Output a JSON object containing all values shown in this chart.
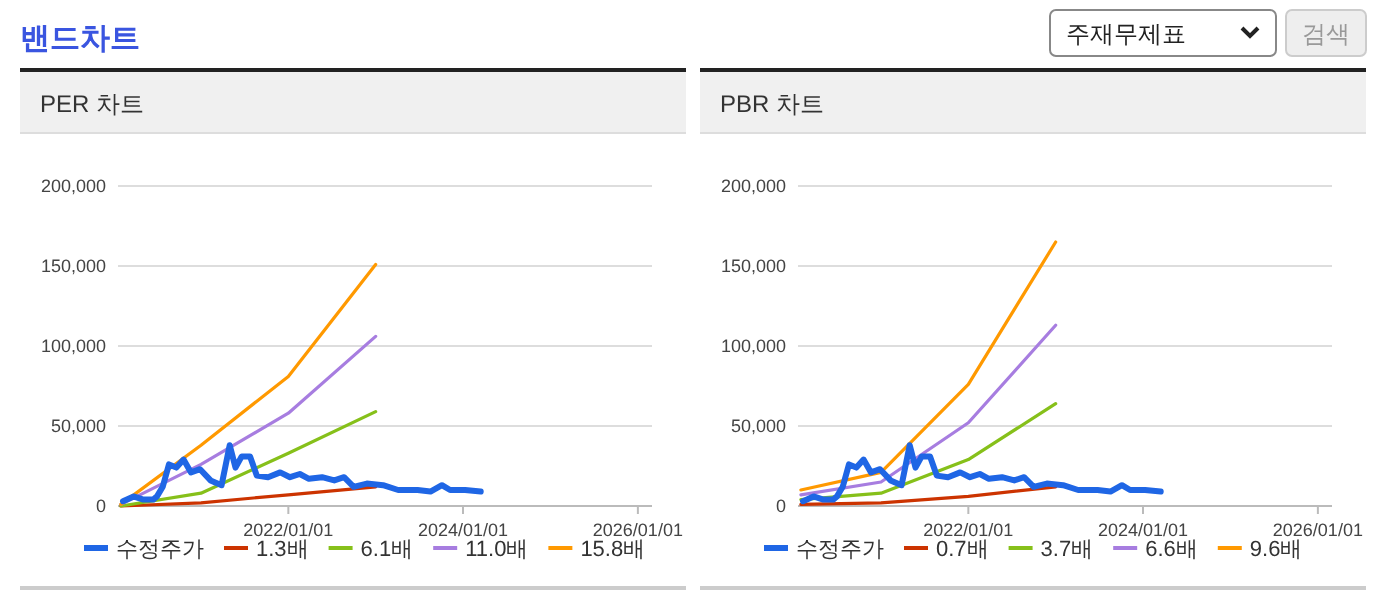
{
  "chart_data": [
    {
      "type": "other",
      "title": "밴드차트",
      "annotations": [
        "주재무제표",
        "검색"
      ]
    },
    {
      "type": "line",
      "title": "PER 차트",
      "xlim": [
        "2020-01-20",
        "2026-03-01"
      ],
      "xticks": [
        {
          "value": "2022-01-01",
          "label": "2022/01/01"
        },
        {
          "value": "2024-01-01",
          "label": "2024/01/01"
        },
        {
          "value": "2026-01-01",
          "label": "2026/01/01"
        }
      ],
      "ylim": [
        0,
        200000
      ],
      "yticks": [
        0,
        {
          "value": 50000,
          "label": "50,000"
        },
        {
          "value": 100000,
          "label": "100,000"
        },
        {
          "value": 150000,
          "label": "150,000"
        },
        {
          "value": 200000,
          "label": "200,000"
        }
      ],
      "grid": "y",
      "legend": "bottom",
      "series": [
        {
          "name": "수정주가",
          "color": "#1f66e5",
          "x": [
            "2020-02-10",
            "2020-03-25",
            "2020-05-05",
            "2020-06-15",
            "2020-07-01",
            "2020-07-25",
            "2020-08-20",
            "2020-09-20",
            "2020-10-20",
            "2020-11-20",
            "2020-12-28",
            "2021-02-10",
            "2021-03-28",
            "2021-05-01",
            "2021-05-25",
            "2021-06-20",
            "2021-07-25",
            "2021-08-22",
            "2021-10-08",
            "2021-11-28",
            "2022-01-08",
            "2022-02-18",
            "2022-03-28",
            "2022-05-22",
            "2022-07-12",
            "2022-08-22",
            "2022-10-01",
            "2022-11-25",
            "2023-02-01",
            "2023-04-05",
            "2023-06-25",
            "2023-08-18",
            "2023-10-05",
            "2023-11-08",
            "2024-01-10",
            "2024-03-15"
          ],
          "values": [
            3000,
            6000,
            4000,
            4000,
            6000,
            12000,
            26000,
            24000,
            29000,
            21000,
            23000,
            16000,
            13000,
            38000,
            24000,
            31000,
            31000,
            19000,
            18000,
            21000,
            18000,
            20000,
            17000,
            18000,
            16000,
            18000,
            12000,
            14000,
            13000,
            10000,
            10000,
            9000,
            13000,
            10000,
            10000,
            9000
          ]
        },
        {
          "name": "1.3배",
          "color": "#cc3300",
          "x": [
            "2020-02-01",
            "2021-01-01",
            "2022-01-01",
            "2023-01-01"
          ],
          "values": [
            0,
            2000,
            7000,
            12000
          ]
        },
        {
          "name": "6.1배",
          "color": "#86c01a",
          "x": [
            "2020-02-01",
            "2021-01-01",
            "2022-01-01",
            "2023-01-01"
          ],
          "values": [
            0,
            8000,
            33000,
            59000
          ]
        },
        {
          "name": "11.0배",
          "color": "#a77de0",
          "x": [
            "2020-02-01",
            "2021-01-01",
            "2022-01-01",
            "2023-01-01"
          ],
          "values": [
            1000,
            26000,
            58000,
            106000
          ]
        },
        {
          "name": "15.8배",
          "color": "#ff9900",
          "x": [
            "2020-02-01",
            "2021-01-01",
            "2022-01-01",
            "2023-01-01"
          ],
          "values": [
            1000,
            38000,
            81000,
            151000
          ]
        }
      ]
    },
    {
      "type": "line",
      "title": "PBR 차트",
      "xlim": [
        "2020-01-20",
        "2026-03-01"
      ],
      "xticks": [
        {
          "value": "2022-01-01",
          "label": "2022/01/01"
        },
        {
          "value": "2024-01-01",
          "label": "2024/01/01"
        },
        {
          "value": "2026-01-01",
          "label": "2026/01/01"
        }
      ],
      "ylim": [
        0,
        200000
      ],
      "yticks": [
        0,
        {
          "value": 50000,
          "label": "50,000"
        },
        {
          "value": 100000,
          "label": "100,000"
        },
        {
          "value": 150000,
          "label": "150,000"
        },
        {
          "value": 200000,
          "label": "200,000"
        }
      ],
      "grid": "y",
      "legend": "bottom",
      "series": [
        {
          "name": "수정주가",
          "color": "#1f66e5",
          "x": [
            "2020-02-10",
            "2020-03-25",
            "2020-05-05",
            "2020-06-15",
            "2020-07-01",
            "2020-07-25",
            "2020-08-20",
            "2020-09-20",
            "2020-10-20",
            "2020-11-20",
            "2020-12-28",
            "2021-02-10",
            "2021-03-28",
            "2021-05-01",
            "2021-05-25",
            "2021-06-20",
            "2021-07-25",
            "2021-08-22",
            "2021-10-08",
            "2021-11-28",
            "2022-01-08",
            "2022-02-18",
            "2022-03-28",
            "2022-05-22",
            "2022-07-12",
            "2022-08-22",
            "2022-10-01",
            "2022-11-25",
            "2023-02-01",
            "2023-04-05",
            "2023-06-25",
            "2023-08-18",
            "2023-10-05",
            "2023-11-08",
            "2024-01-10",
            "2024-03-15"
          ],
          "values": [
            3000,
            6000,
            4000,
            4000,
            6000,
            12000,
            26000,
            24000,
            29000,
            21000,
            23000,
            16000,
            13000,
            38000,
            24000,
            31000,
            31000,
            19000,
            18000,
            21000,
            18000,
            20000,
            17000,
            18000,
            16000,
            18000,
            12000,
            14000,
            13000,
            10000,
            10000,
            9000,
            13000,
            10000,
            10000,
            9000
          ]
        },
        {
          "name": "0.7배",
          "color": "#cc3300",
          "x": [
            "2020-02-01",
            "2021-01-01",
            "2022-01-01",
            "2023-01-01"
          ],
          "values": [
            1000,
            2000,
            6000,
            12000
          ]
        },
        {
          "name": "3.7배",
          "color": "#86c01a",
          "x": [
            "2020-02-01",
            "2021-01-01",
            "2022-01-01",
            "2023-01-01"
          ],
          "values": [
            4000,
            8000,
            29000,
            64000
          ]
        },
        {
          "name": "6.6배",
          "color": "#a77de0",
          "x": [
            "2020-02-01",
            "2021-01-01",
            "2022-01-01",
            "2023-01-01"
          ],
          "values": [
            7000,
            15000,
            52000,
            113000
          ]
        },
        {
          "name": "9.6배",
          "color": "#ff9900",
          "x": [
            "2020-02-01",
            "2021-01-01",
            "2022-01-01",
            "2023-01-01"
          ],
          "values": [
            10000,
            21000,
            76000,
            165000
          ]
        }
      ]
    }
  ]
}
